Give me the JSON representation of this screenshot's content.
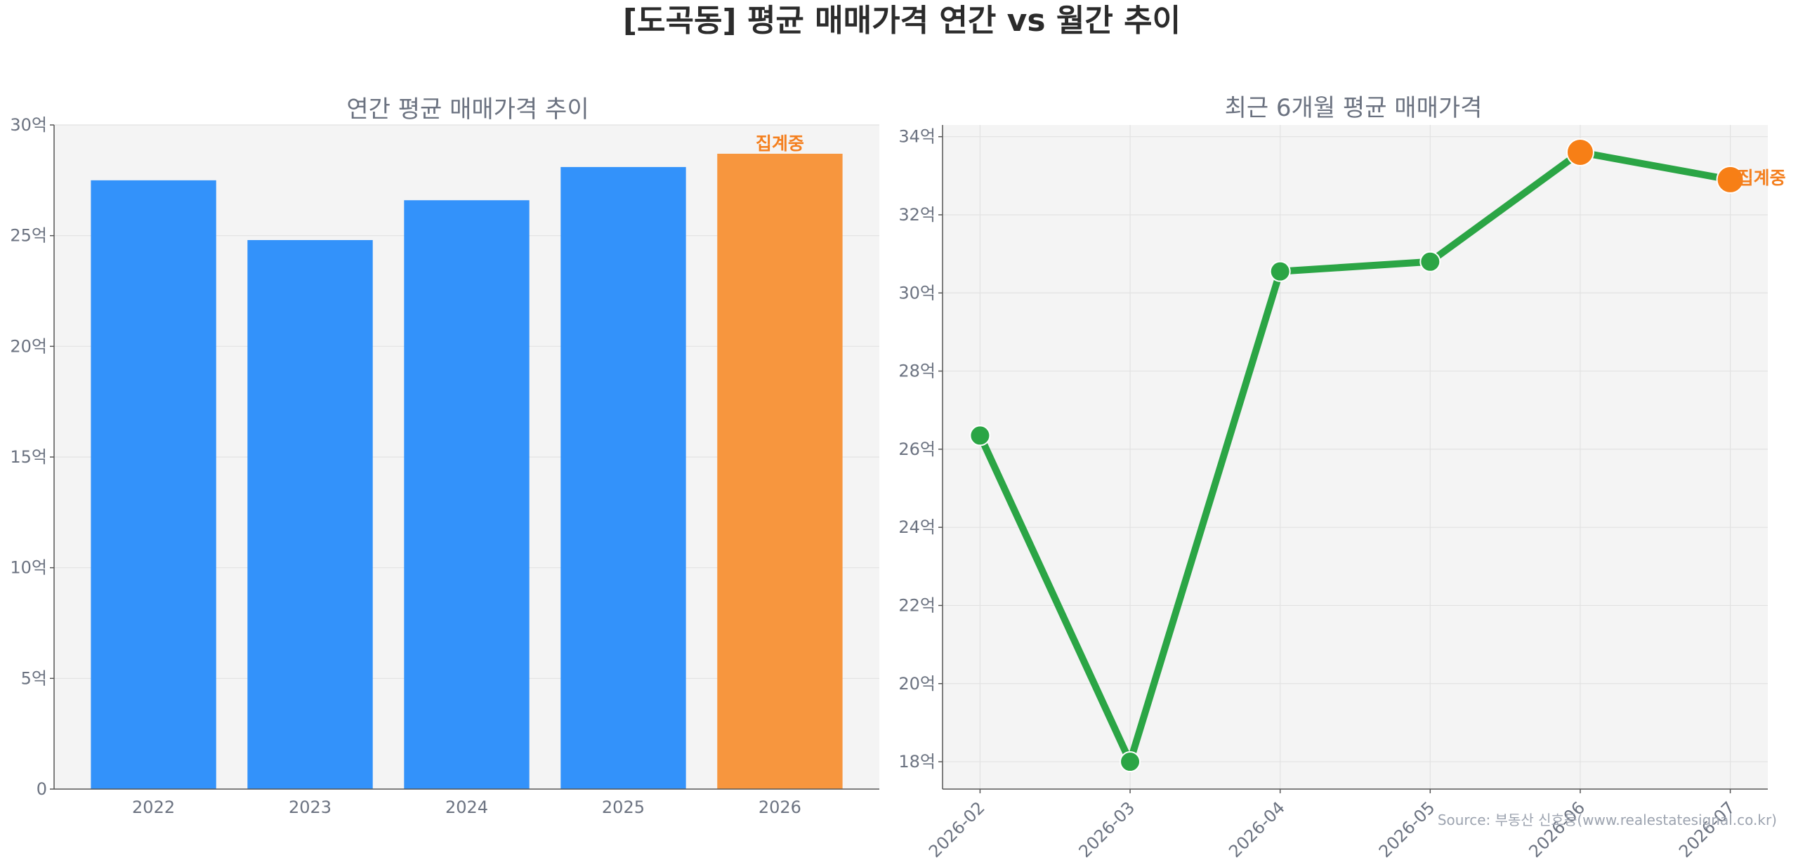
{
  "figure_title": "[도곡동] 평균 매매가격 연간 vs 월간 추이",
  "source_text": "Source: 부동산 신호등(www.realestatesignal.co.kr)",
  "colors": {
    "bar": "#3392fa",
    "bar_highlight": "#f7963e",
    "line": "#2ba545",
    "point_highlight": "#f77f16",
    "note": "#f47f1e",
    "panel_bg": "#f4f4f4",
    "grid": "#e2e2e2"
  },
  "chart_data": [
    {
      "type": "bar",
      "title": "연간 평균 매매가격 추이",
      "categories": [
        "2022",
        "2023",
        "2024",
        "2025",
        "2026"
      ],
      "values": [
        27.5,
        24.8,
        26.6,
        28.1,
        28.7
      ],
      "highlight_index": 4,
      "annotation": "집계중",
      "ylim": [
        0,
        30
      ],
      "yticks": [
        0,
        5,
        10,
        15,
        20,
        25,
        30
      ],
      "ytick_labels": [
        "0",
        "5억",
        "10억",
        "15억",
        "20억",
        "25억",
        "30억"
      ],
      "grid": true
    },
    {
      "type": "line",
      "title": "최근 6개월 평균 매매가격",
      "x": [
        "2026-02",
        "2026-03",
        "2026-04",
        "2026-05",
        "2026-06",
        "2026-07"
      ],
      "values": [
        26.35,
        18.0,
        30.55,
        30.8,
        33.6,
        32.9
      ],
      "highlight_indices": [
        4,
        5
      ],
      "annotation": "집계중",
      "ylim": [
        17.3,
        34.3
      ],
      "yticks": [
        18,
        20,
        22,
        24,
        26,
        28,
        30,
        32,
        34
      ],
      "ytick_labels": [
        "18억",
        "20억",
        "22억",
        "24억",
        "26억",
        "28억",
        "30억",
        "32억",
        "34억"
      ],
      "grid": true
    }
  ]
}
